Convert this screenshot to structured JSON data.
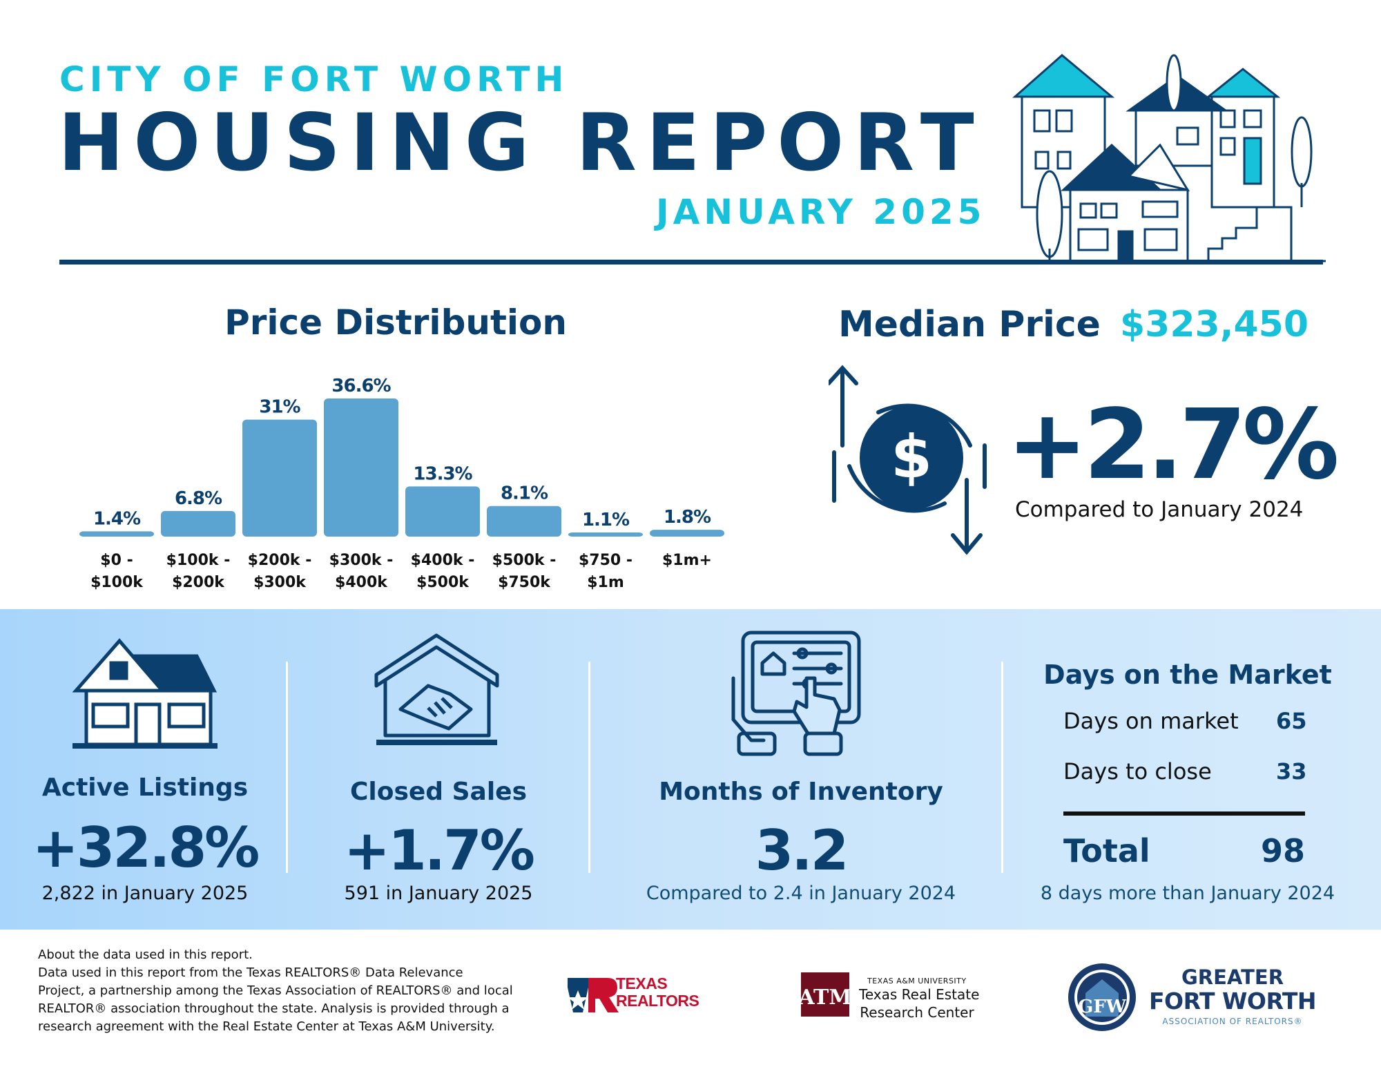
{
  "header": {
    "city": "CITY OF FORT WORTH",
    "title": "HOUSING REPORT",
    "month": "JANUARY 2025"
  },
  "price_distribution": {
    "title": "Price Distribution"
  },
  "chart_data": {
    "type": "bar",
    "title": "Price Distribution",
    "categories": [
      [
        "$0 -",
        "$100k"
      ],
      [
        "$100k -",
        "$200k"
      ],
      [
        "$200k -",
        "$300k"
      ],
      [
        "$300k -",
        "$400k"
      ],
      [
        "$400k -",
        "$500k"
      ],
      [
        "$500k -",
        "$750k"
      ],
      [
        "$750 -",
        "$1m"
      ],
      [
        "$1m+"
      ]
    ],
    "values": [
      1.4,
      6.8,
      31,
      36.6,
      13.3,
      8.1,
      1.1,
      1.8
    ],
    "value_labels": [
      "1.4%",
      "6.8%",
      "31%",
      "36.6%",
      "13.3%",
      "8.1%",
      "1.1%",
      "1.8%"
    ],
    "unit": "%",
    "ylim": [
      0,
      36.6
    ],
    "bar_color": "#5ba3d0",
    "grid": false
  },
  "median_price": {
    "label": "Median Price",
    "value": "$323,450",
    "change": "+2.7%",
    "compare": "Compared to January 2024",
    "icon": "dollar-cycle-icon"
  },
  "stats": {
    "active_listings": {
      "label": "Active Listings",
      "value": "+32.8%",
      "sub": "2,822 in January 2025",
      "icon": "house-icon"
    },
    "closed_sales": {
      "label": "Closed Sales",
      "value": "+1.7%",
      "sub": "591 in January 2025",
      "icon": "handshake-house-icon"
    },
    "months_inventory": {
      "label": "Months of Inventory",
      "value": "3.2",
      "sub": "Compared to 2.4 in January 2024",
      "icon": "tablet-settings-icon"
    }
  },
  "days_on_market": {
    "title": "Days on the Market",
    "rows": [
      {
        "label": "Days on market",
        "value": "65"
      },
      {
        "label": "Days to close",
        "value": "33"
      }
    ],
    "total_label": "Total",
    "total_value": "98",
    "sub": "8 days more than January 2024"
  },
  "footer": {
    "note_lines": [
      "About the data used in this report.",
      "Data used in this report from the Texas REALTORS® Data Relevance",
      "Project, a partnership among the Texas Association of REALTORS® and local",
      "REALTOR® association throughout the state. Analysis is provided through a",
      "research agreement with the Real Estate Center at Texas A&M University."
    ],
    "logo_texas_realtors": [
      "TEXAS",
      "REALTORS"
    ],
    "logo_tamu": {
      "small": "TEXAS A&M UNIVERSITY",
      "line1": "Texas Real Estate",
      "line2": "Research Center"
    },
    "logo_gfw": {
      "line1": "GREATER",
      "line2": "FORT WORTH",
      "line3": "ASSOCIATION OF REALTORS®"
    }
  },
  "colors": {
    "navy": "#0b3f6e",
    "cyan": "#17c1d9",
    "bar": "#5ba3d0",
    "band": "#c8e4fb"
  }
}
